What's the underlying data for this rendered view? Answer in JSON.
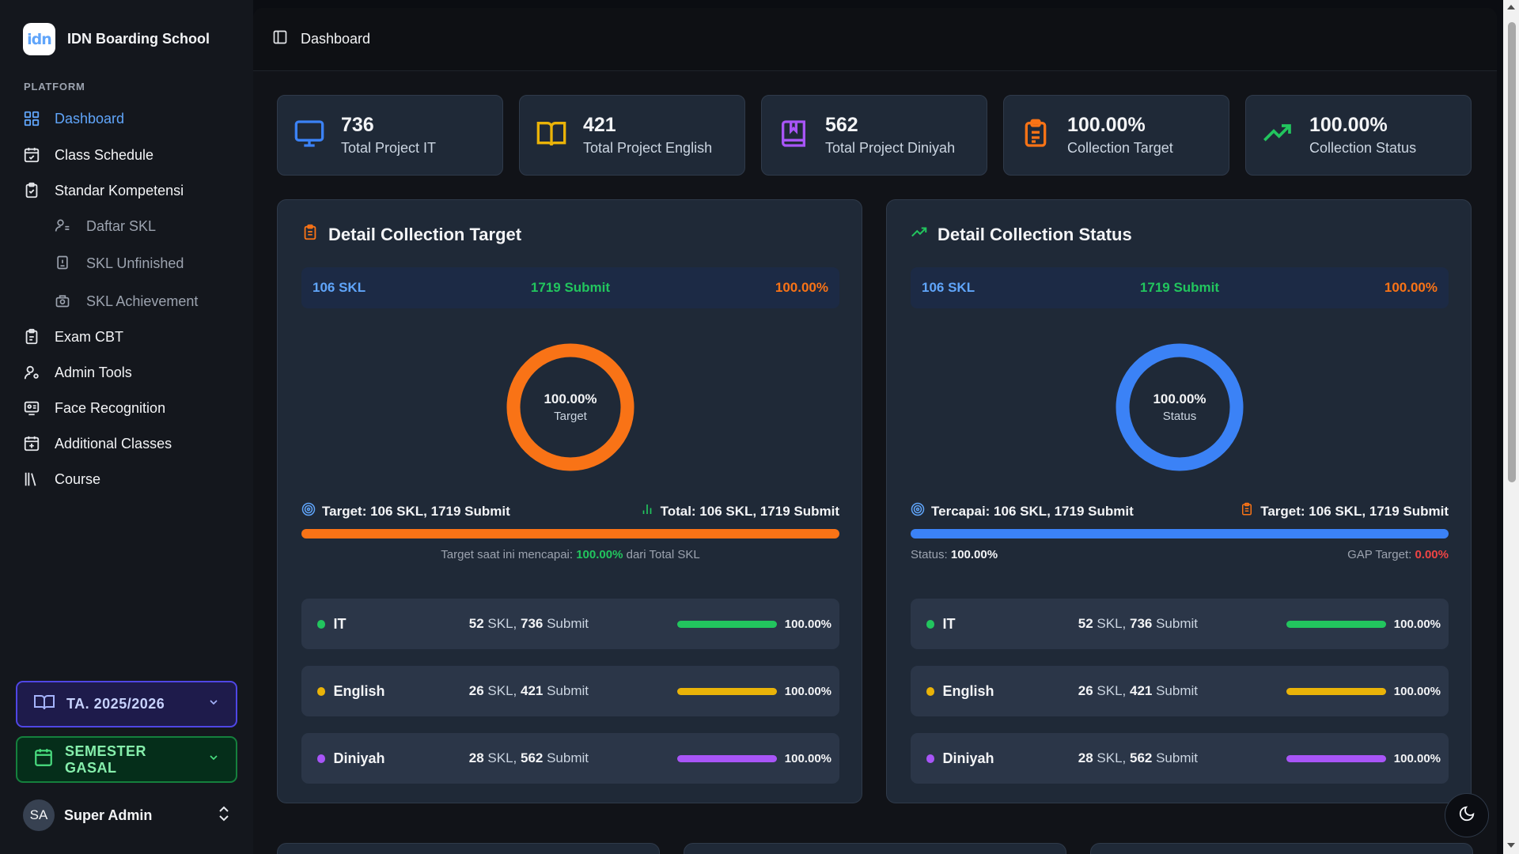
{
  "brand": {
    "name": "IDN Boarding School",
    "logo_text": "idn"
  },
  "sidebar": {
    "group_label": "PLATFORM",
    "items": [
      {
        "label": "Dashboard",
        "icon": "layout-grid-icon"
      },
      {
        "label": "Class Schedule",
        "icon": "calendar-icon"
      },
      {
        "label": "Standar Kompetensi",
        "icon": "clipboard-check-icon"
      },
      {
        "label": "Daftar SKL",
        "icon": "user-list-icon"
      },
      {
        "label": "SKL Unfinished",
        "icon": "book-icon"
      },
      {
        "label": "SKL Achievement",
        "icon": "award-icon"
      },
      {
        "label": "Exam CBT",
        "icon": "clipboard-edit-icon"
      },
      {
        "label": "Admin Tools",
        "icon": "user-cog-icon"
      },
      {
        "label": "Face Recognition",
        "icon": "face-id-icon"
      },
      {
        "label": "Additional Classes",
        "icon": "calendar-plus-icon"
      },
      {
        "label": "Course",
        "icon": "library-icon"
      }
    ],
    "year_select": "TA. 2025/2026",
    "semester_select": "SEMESTER GASAL",
    "user": {
      "initials": "SA",
      "name": "Super Admin"
    }
  },
  "topbar": {
    "title": "Dashboard"
  },
  "stats": [
    {
      "value": "736",
      "label": "Total Project IT",
      "color": "#3b82f6",
      "icon": "monitor-icon"
    },
    {
      "value": "421",
      "label": "Total Project English",
      "color": "#eab308",
      "icon": "book-open-icon"
    },
    {
      "value": "562",
      "label": "Total Project Diniyah",
      "color": "#a855f7",
      "icon": "book-marked-icon"
    },
    {
      "value": "100.00%",
      "label": "Collection Target",
      "color": "#f97316",
      "icon": "clipboard-list-icon"
    },
    {
      "value": "100.00%",
      "label": "Collection Status",
      "color": "#22c55e",
      "icon": "trending-up-icon"
    }
  ],
  "target_panel": {
    "title": "Detail Collection Target",
    "summary": {
      "skl": "106 SKL",
      "submit": "1719 Submit",
      "pct": "100.00%"
    },
    "donut": {
      "value": "100.00%",
      "label": "Target",
      "fraction": 1.0,
      "color": "#f97316"
    },
    "left_meta": "Target: 106 SKL, 1719 Submit",
    "right_meta": "Total: 106 SKL, 1719 Submit",
    "progress": 1.0,
    "note_prefix": "Target saat ini mencapai: ",
    "note_value": "100.00%",
    "note_suffix": " dari Total SKL",
    "rows": [
      {
        "name": "IT",
        "skl": "52",
        "submit": "736",
        "pct": "100.00%",
        "color": "#22c55e",
        "fraction": 1.0
      },
      {
        "name": "English",
        "skl": "26",
        "submit": "421",
        "pct": "100.00%",
        "color": "#eab308",
        "fraction": 1.0
      },
      {
        "name": "Diniyah",
        "skl": "28",
        "submit": "562",
        "pct": "100.00%",
        "color": "#a855f7",
        "fraction": 1.0
      }
    ]
  },
  "status_panel": {
    "title": "Detail Collection Status",
    "summary": {
      "skl": "106 SKL",
      "submit": "1719 Submit",
      "pct": "100.00%"
    },
    "donut": {
      "value": "100.00%",
      "label": "Status",
      "fraction": 1.0,
      "color": "#3b82f6"
    },
    "left_meta": "Tercapai: 106 SKL, 1719 Submit",
    "right_meta": "Target: 106 SKL, 1719 Submit",
    "progress": 1.0,
    "status_label": "Status: ",
    "status_value": "100.00%",
    "gap_label": "GAP Target: ",
    "gap_value": "0.00%",
    "rows": [
      {
        "name": "IT",
        "skl": "52",
        "submit": "736",
        "pct": "100.00%",
        "color": "#22c55e",
        "fraction": 1.0
      },
      {
        "name": "English",
        "skl": "26",
        "submit": "421",
        "pct": "100.00%",
        "color": "#eab308",
        "fraction": 1.0
      },
      {
        "name": "Diniyah",
        "skl": "28",
        "submit": "562",
        "pct": "100.00%",
        "color": "#a855f7",
        "fraction": 1.0
      }
    ]
  },
  "words": {
    "skl_unit": " SKL, ",
    "submit_unit": " Submit"
  },
  "colors": {
    "accent": "#60a5fa",
    "green_text": "#22c55e",
    "orange_text": "#f97316",
    "red_text": "#ef4444"
  }
}
